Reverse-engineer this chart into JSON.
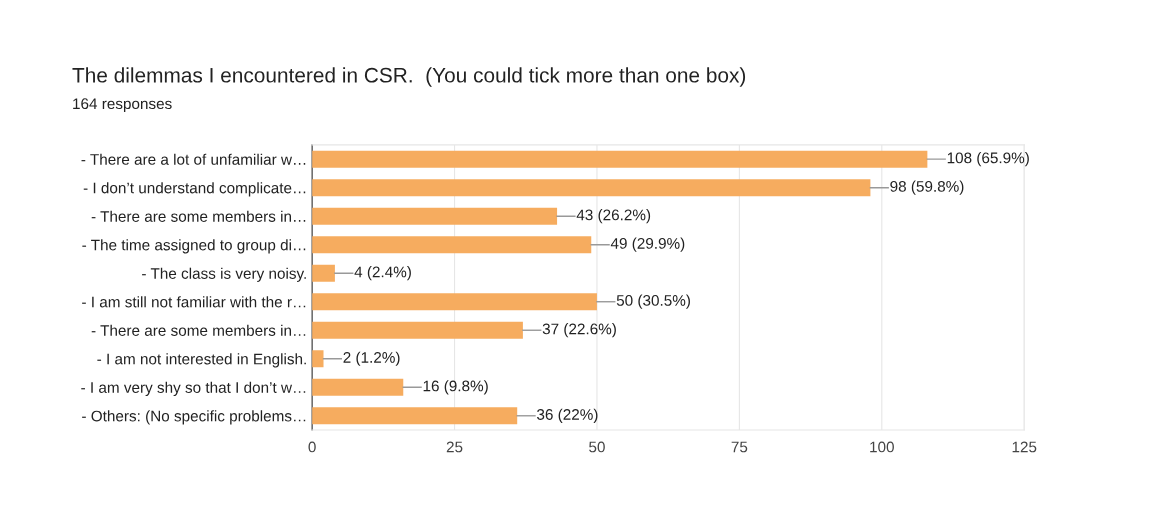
{
  "chart_data": {
    "type": "bar",
    "orientation": "horizontal",
    "title": "The dilemmas I encountered in CSR.  (You could tick more than one box)",
    "subtitle": "164 responses",
    "categories": [
      "- There are a lot of unfamiliar w…",
      "- I don’t understand complicate…",
      "- There are some members in…",
      "- The time assigned to group di…",
      "- The class is very noisy.",
      "- I am still not familiar with the r…",
      "- There are some members in…",
      "- I am not interested in English.",
      "- I am very shy so that I don’t w…",
      "- Others: (No specific problems…"
    ],
    "values": [
      108,
      98,
      43,
      49,
      4,
      50,
      37,
      2,
      16,
      36
    ],
    "value_labels": [
      "108 (65.9%)",
      "98 (59.8%)",
      "43 (26.2%)",
      "49 (29.9%)",
      "4 (2.4%)",
      "50 (30.5%)",
      "37 (22.6%)",
      "2 (1.2%)",
      "16 (9.8%)",
      "36 (22%)"
    ],
    "color": "#f6ac5f",
    "xlim": [
      0,
      125
    ],
    "xticks": [
      0,
      25,
      50,
      75,
      100,
      125
    ],
    "grid": "x",
    "legend": false
  }
}
